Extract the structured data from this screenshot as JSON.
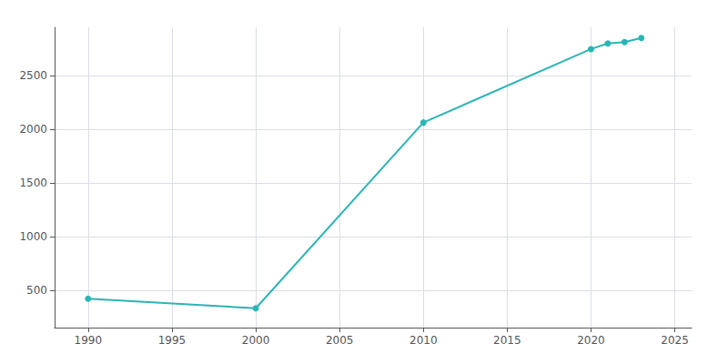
{
  "chart_data": {
    "type": "line",
    "x": [
      1990,
      2000,
      2010,
      2020,
      2021,
      2022,
      2023
    ],
    "values": [
      420,
      330,
      2062,
      2747,
      2800,
      2812,
      2851
    ],
    "color": "#2ab5b5",
    "marker": "circle",
    "xlim": [
      1988,
      2026
    ],
    "ylim": [
      150,
      2950
    ],
    "xticks": [
      1990,
      1995,
      2000,
      2005,
      2010,
      2015,
      2020,
      2025
    ],
    "yticks": [
      500,
      1000,
      1500,
      2000,
      2500
    ],
    "grid": true
  }
}
